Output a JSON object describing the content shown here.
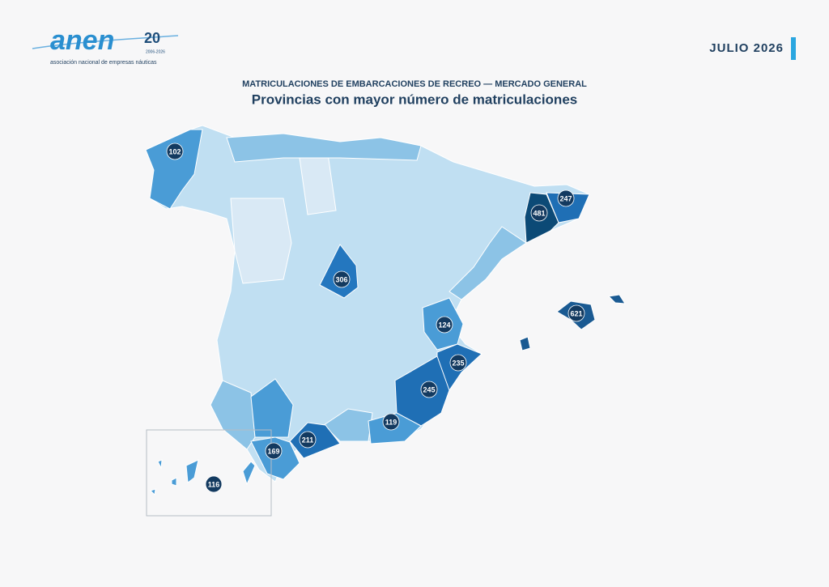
{
  "header": {
    "logo_text": "anen",
    "logo_anniversary": "20",
    "logo_years": "2006-2026",
    "logo_tagline": "asociación nacional de empresas náuticas",
    "date": "JULIO 2026"
  },
  "map": {
    "subtitle": "MATRICULACIONES DE EMBARCACIONES DE RECREO — MERCADO GENERAL",
    "title": "Provincias con mayor número de matriculaciones",
    "markers": [
      102,
      247,
      481,
      306,
      621,
      124,
      235,
      245,
      119,
      211,
      169,
      116
    ]
  }
}
